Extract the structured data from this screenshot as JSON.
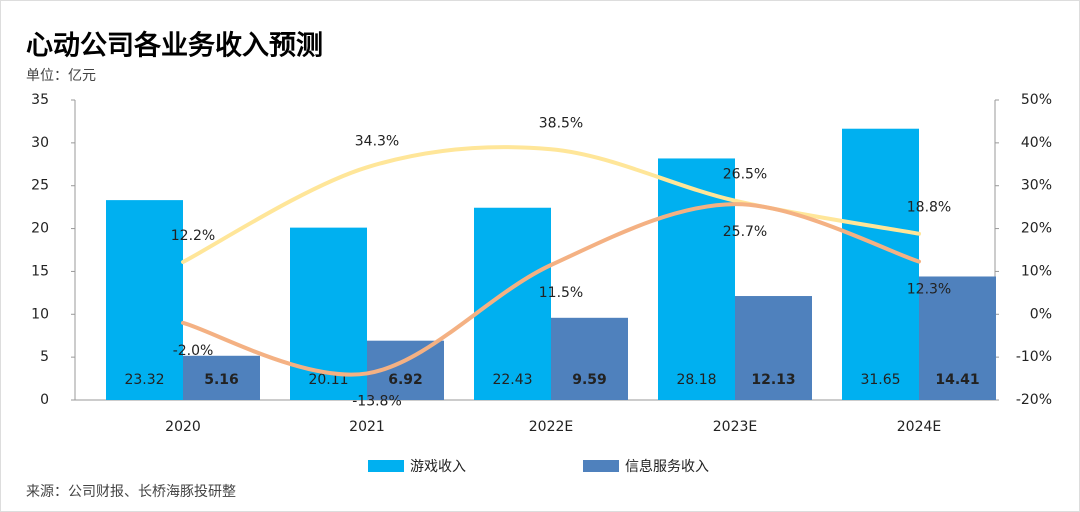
{
  "chart_data": {
    "type": "bar_line",
    "title": "心动公司各业务收入预测",
    "y_label": "单位：亿元",
    "source": "来源：公司财报、长桥海豚投研整",
    "categories": [
      "2020",
      "2021",
      "2022E",
      "2023E",
      "2024E"
    ],
    "series": [
      {
        "name": "游戏收入",
        "color": "#00b0f0",
        "type": "bar",
        "values": [
          23.32,
          20.11,
          22.43,
          28.18,
          31.65
        ]
      },
      {
        "name": "信息服务收入",
        "color": "#4f81bd",
        "type": "bar",
        "values": [
          5.16,
          6.92,
          9.59,
          12.13,
          14.41
        ]
      },
      {
        "color": "#ffe699",
        "type": "line",
        "axis": "y2",
        "values": [
          12.2,
          34.3,
          38.5,
          26.5,
          18.8
        ],
        "value_labels": [
          "12.2%",
          "34.3%",
          "38.5%",
          "26.5%",
          "18.8%"
        ]
      },
      {
        "color": "#f4b183",
        "type": "line",
        "axis": "y2",
        "values": [
          -2.0,
          -13.8,
          11.5,
          25.7,
          12.3
        ],
        "value_labels": [
          "-2.0%",
          "-13.8%",
          "11.5%",
          "25.7%",
          "12.3%"
        ]
      }
    ],
    "ylim": [
      0,
      35
    ],
    "yticks": [
      0,
      5,
      10,
      15,
      20,
      25,
      30,
      35
    ],
    "y2lim": [
      -20,
      50
    ],
    "y2ticks": [
      {
        "value": -20,
        "label": "-20%"
      },
      {
        "value": -10,
        "label": "-10%"
      },
      {
        "value": 0,
        "label": "0%"
      },
      {
        "value": 10,
        "label": "10%"
      },
      {
        "value": 20,
        "label": "20%"
      },
      {
        "value": 30,
        "label": "30%"
      },
      {
        "value": 40,
        "label": "40%"
      },
      {
        "value": 50,
        "label": "50%"
      }
    ],
    "grid": false
  }
}
